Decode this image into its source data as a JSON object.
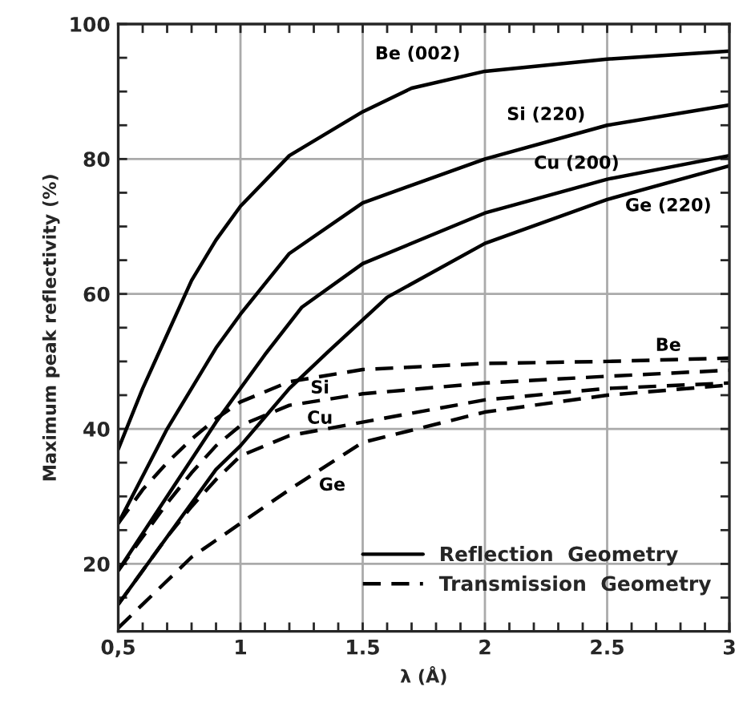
{
  "chart_data": {
    "type": "line",
    "xlabel": "λ (Å)",
    "ylabel": "Maximum peak reflectivity (%)",
    "xlim": [
      0.5,
      3
    ],
    "ylim": [
      10,
      100
    ],
    "xticks": [
      {
        "value": 0.5,
        "label": "0,5"
      },
      {
        "value": 0.6,
        "label": null
      },
      {
        "value": 0.7,
        "label": null
      },
      {
        "value": 0.8,
        "label": null
      },
      {
        "value": 0.9,
        "label": null
      },
      1,
      {
        "value": 1.1,
        "label": null
      },
      {
        "value": 1.2,
        "label": null
      },
      {
        "value": 1.3,
        "label": null
      },
      {
        "value": 1.4,
        "label": null
      },
      1.5,
      {
        "value": 1.6,
        "label": null
      },
      {
        "value": 1.7,
        "label": null
      },
      {
        "value": 1.8,
        "label": null
      },
      {
        "value": 1.9,
        "label": null
      },
      2,
      {
        "value": 2.1,
        "label": null
      },
      {
        "value": 2.2,
        "label": null
      },
      {
        "value": 2.3,
        "label": null
      },
      {
        "value": 2.4,
        "label": null
      },
      2.5,
      {
        "value": 2.6,
        "label": null
      },
      {
        "value": 2.7,
        "label": null
      },
      {
        "value": 2.8,
        "label": null
      },
      {
        "value": 2.9,
        "label": null
      },
      3
    ],
    "yticks": [
      {
        "value": 15,
        "label": null
      },
      20,
      {
        "value": 25,
        "label": null
      },
      {
        "value": 30,
        "label": null
      },
      {
        "value": 35,
        "label": null
      },
      40,
      {
        "value": 45,
        "label": null
      },
      {
        "value": 50,
        "label": null
      },
      {
        "value": 55,
        "label": null
      },
      60,
      {
        "value": 65,
        "label": null
      },
      {
        "value": 70,
        "label": null
      },
      {
        "value": 75,
        "label": null
      },
      80,
      {
        "value": 85,
        "label": null
      },
      {
        "value": 90,
        "label": null
      },
      {
        "value": 95,
        "label": null
      },
      100
    ],
    "grid": true,
    "marker": "none",
    "series": [
      {
        "name": "Be (002)",
        "color": "#000000",
        "line_style": "solid",
        "x": [
          0.5,
          0.6,
          0.7,
          0.8,
          0.9,
          1.0,
          1.2,
          1.5,
          1.7,
          2,
          2.5,
          3
        ],
        "values": [
          37,
          46,
          54,
          62,
          68,
          73,
          80.5,
          87,
          90.5,
          93,
          94.8,
          96
        ]
      },
      {
        "name": "Si (220)",
        "color": "#000000",
        "line_style": "solid",
        "x": [
          0.5,
          0.6,
          0.7,
          0.8,
          0.9,
          1.0,
          1.2,
          1.5,
          2,
          2.5,
          3
        ],
        "values": [
          26,
          33,
          40,
          46,
          52,
          57,
          66,
          73.5,
          80,
          85,
          88
        ]
      },
      {
        "name": "Cu (200)",
        "color": "#000000",
        "line_style": "solid",
        "x": [
          0.5,
          0.7,
          0.9,
          1.0,
          1.1,
          1.25,
          1.5,
          2,
          2.5,
          3
        ],
        "values": [
          19,
          30,
          41,
          46,
          51,
          58,
          64.5,
          72,
          77,
          80.5
        ]
      },
      {
        "name": "Ge (220)",
        "color": "#000000",
        "line_style": "solid",
        "x": [
          0.5,
          0.7,
          0.9,
          1.0,
          1.2,
          1.36,
          1.6,
          2,
          2.5,
          3
        ],
        "values": [
          14,
          24,
          34,
          37.5,
          46,
          51.5,
          59.5,
          67.5,
          74,
          79
        ]
      },
      {
        "name": "Be",
        "color": "#000000",
        "line_style": "dashed",
        "x": [
          0.5,
          0.6,
          0.7,
          0.8,
          0.9,
          1.0,
          1.2,
          1.5,
          2,
          2.5,
          3
        ],
        "values": [
          26,
          31,
          35,
          38.5,
          41.5,
          44,
          47,
          48.8,
          49.7,
          50,
          50.5
        ]
      },
      {
        "name": "Si",
        "color": "#000000",
        "line_style": "dashed",
        "x": [
          0.5,
          0.6,
          0.7,
          0.8,
          0.9,
          1.0,
          1.2,
          1.5,
          2,
          2.5,
          3
        ],
        "values": [
          19,
          24,
          29,
          33.5,
          37.5,
          40.5,
          43.5,
          45.2,
          46.8,
          47.8,
          48.7
        ]
      },
      {
        "name": "Cu",
        "color": "#000000",
        "line_style": "dashed",
        "x": [
          0.5,
          0.6,
          0.7,
          0.8,
          0.9,
          1.0,
          1.2,
          1.5,
          2,
          2.5,
          3
        ],
        "values": [
          14,
          19,
          24,
          28.5,
          32.5,
          36,
          39,
          41,
          44.3,
          46,
          46.8
        ]
      },
      {
        "name": "Ge",
        "color": "#000000",
        "line_style": "dashed",
        "x": [
          0.5,
          0.6,
          0.7,
          0.8,
          0.9,
          1.0,
          1.2,
          1.5,
          2,
          2.5,
          3
        ],
        "values": [
          10.5,
          14,
          17.5,
          21,
          23.5,
          26,
          31,
          38,
          42.5,
          45,
          46.5
        ]
      }
    ],
    "annotations": [
      "Reflection  Geometry",
      "Transmission  Geometry"
    ]
  }
}
